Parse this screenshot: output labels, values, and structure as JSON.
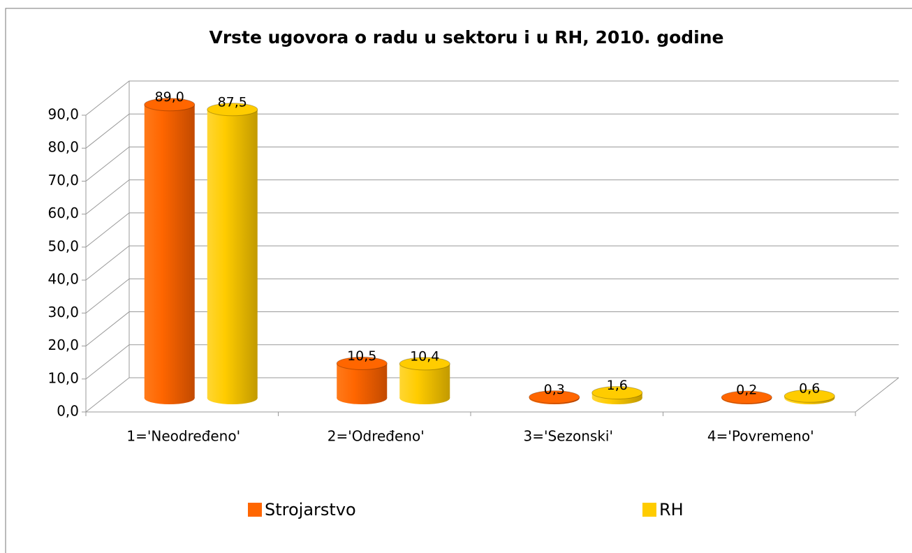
{
  "chart_data": {
    "type": "bar3d",
    "title": "Vrste ugovora o radu u sektoru i u RH, 2010. godine",
    "categories": [
      "1='Neodređeno'",
      "2='Određeno'",
      "3='Sezonski'",
      "4='Povremeno'"
    ],
    "series": [
      {
        "name": "Strojarstvo",
        "color": "#ff6600",
        "values": [
          89.0,
          10.5,
          0.3,
          0.2
        ],
        "value_labels": [
          "89,0",
          "10,5",
          "0,3",
          "0,2"
        ]
      },
      {
        "name": "RH",
        "color": "#ffcc00",
        "values": [
          87.5,
          10.4,
          1.6,
          0.6
        ],
        "value_labels": [
          "87,5",
          "10,4",
          "1,6",
          "0,6"
        ]
      }
    ],
    "ylim": [
      0,
      90
    ],
    "yticks": [
      {
        "value": 0,
        "label": "0,0"
      },
      {
        "value": 10,
        "label": "10,0"
      },
      {
        "value": 20,
        "label": "20,0"
      },
      {
        "value": 30,
        "label": "30,0"
      },
      {
        "value": 40,
        "label": "40,0"
      },
      {
        "value": 50,
        "label": "50,0"
      },
      {
        "value": 60,
        "label": "60,0"
      },
      {
        "value": 70,
        "label": "70,0"
      },
      {
        "value": 80,
        "label": "80,0"
      },
      {
        "value": 90,
        "label": "90,0"
      }
    ],
    "grid": true
  }
}
